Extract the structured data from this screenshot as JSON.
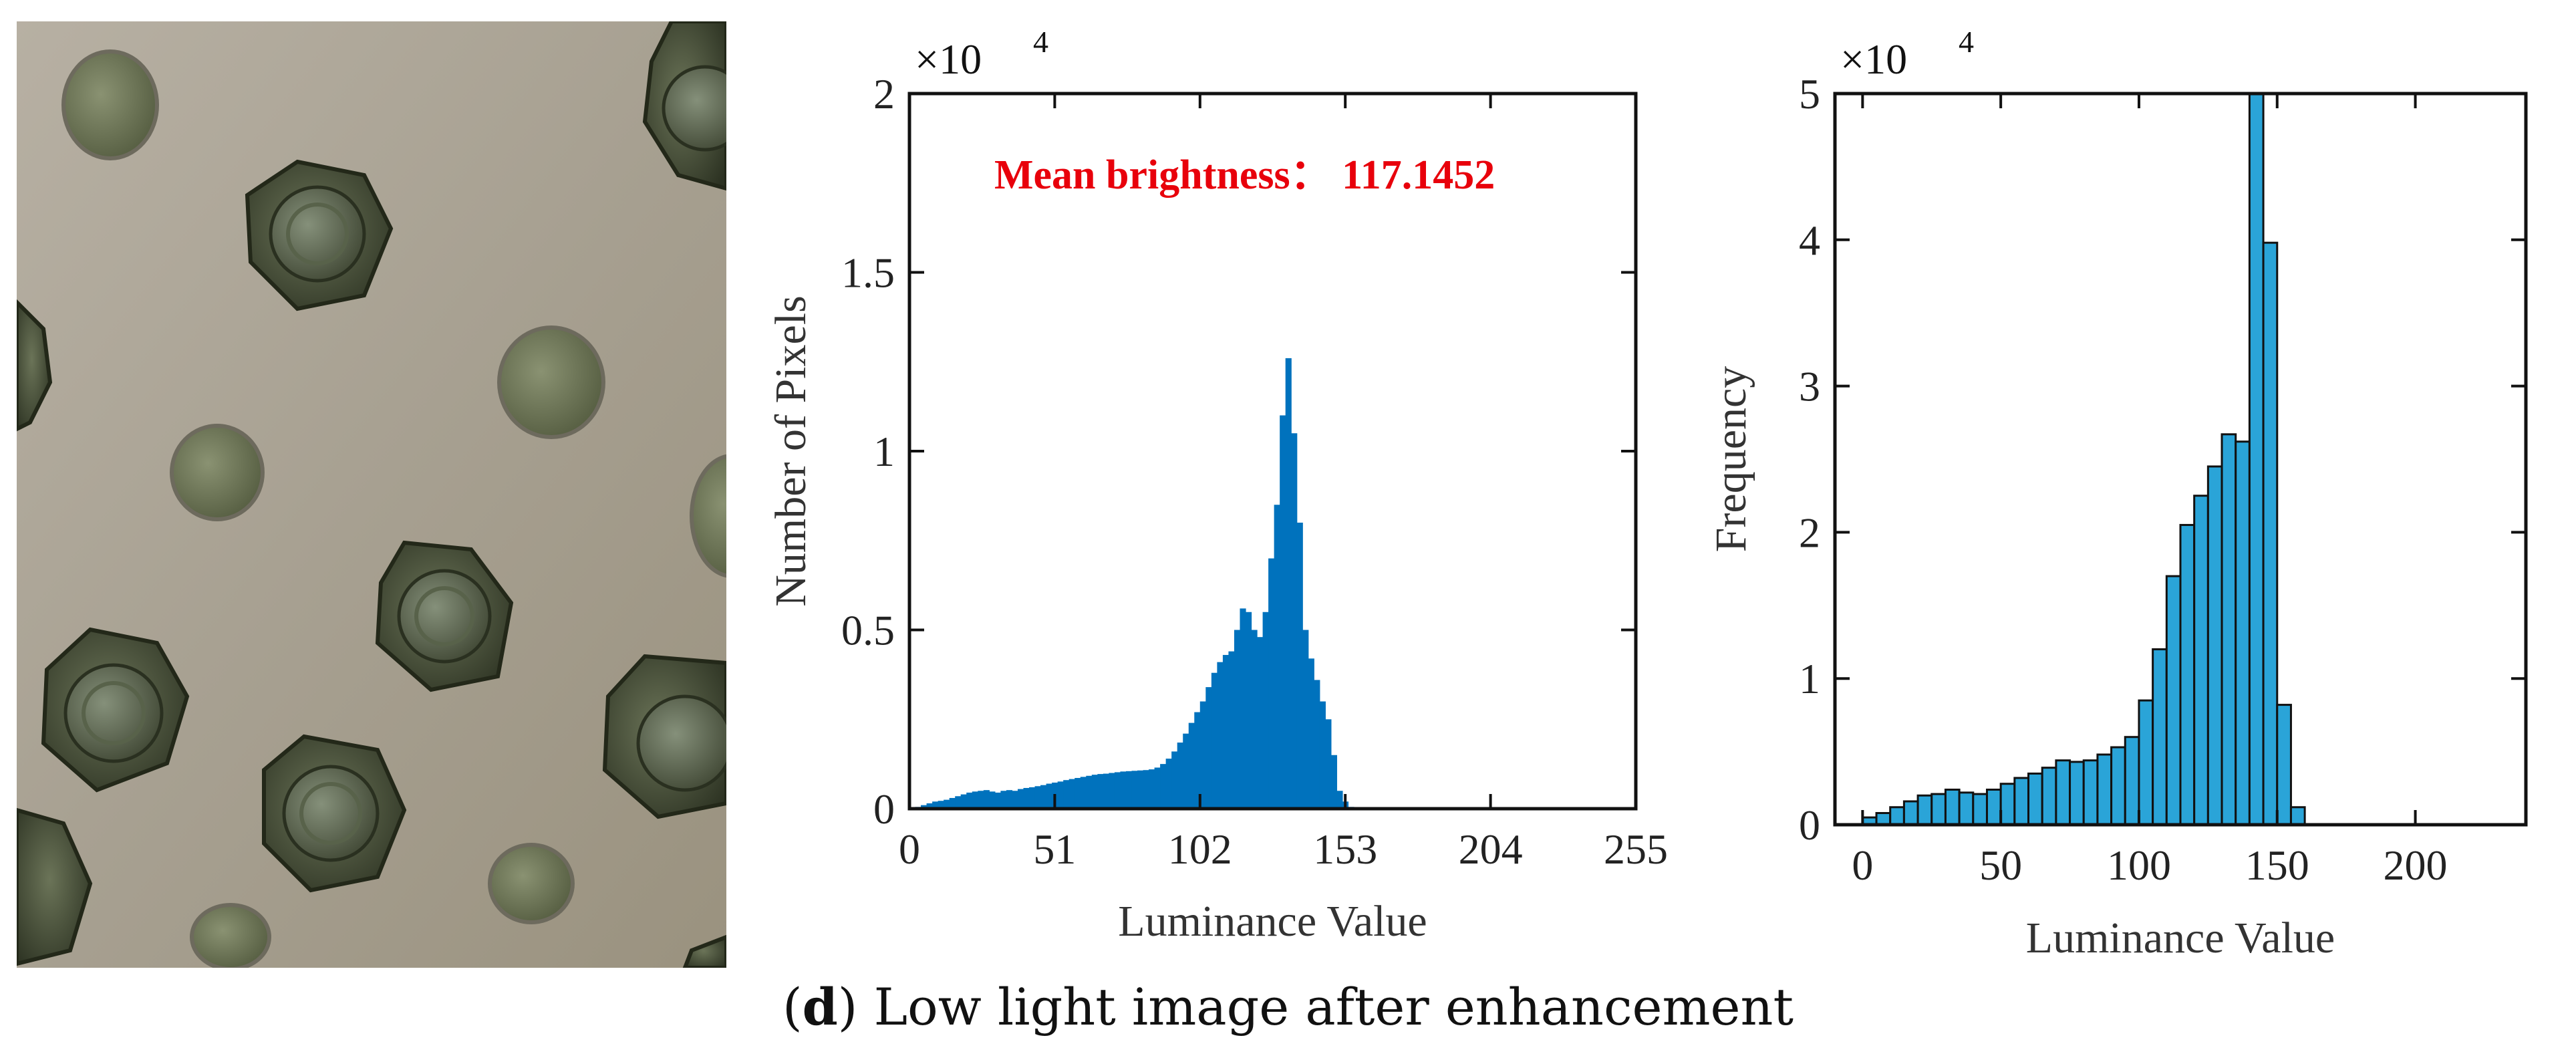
{
  "caption": {
    "label": "d",
    "text": "Low light image after enhancement"
  },
  "photo": {
    "description_name": "hex-bolt-plate-photo"
  },
  "colors": {
    "hist_fill": "#0072bd",
    "bar_fill": "#2aa4d8",
    "annotation": "#e8000b",
    "axis": "#111111"
  },
  "chart_data": [
    {
      "type": "area",
      "title": "",
      "xlabel": "Luminance Value",
      "ylabel": "Number of Pixels",
      "exponent_label": "×10",
      "exponent_power": "4",
      "annotation": "Mean brightness： 117.1452",
      "xlim": [
        0,
        255
      ],
      "ylim": [
        0,
        2
      ],
      "xticks": [
        0,
        51,
        102,
        153,
        204,
        255
      ],
      "yticks": [
        0,
        0.5,
        1,
        1.5,
        2
      ],
      "ytick_labels": [
        "0",
        "0.5",
        "1",
        "1.5",
        "2"
      ],
      "grid": false,
      "x": [
        0,
        2,
        4,
        6,
        8,
        10,
        12,
        14,
        16,
        18,
        20,
        22,
        24,
        26,
        28,
        30,
        32,
        34,
        36,
        38,
        40,
        42,
        44,
        46,
        48,
        50,
        52,
        54,
        56,
        58,
        60,
        62,
        64,
        66,
        68,
        70,
        72,
        74,
        76,
        78,
        80,
        82,
        84,
        86,
        88,
        90,
        92,
        94,
        96,
        98,
        100,
        102,
        104,
        106,
        108,
        110,
        112,
        114,
        116,
        118,
        120,
        122,
        124,
        126,
        128,
        130,
        132,
        134,
        136,
        138,
        140,
        142,
        144,
        146,
        148,
        150,
        152,
        154,
        156,
        158,
        160
      ],
      "values": [
        0,
        0.005,
        0.01,
        0.015,
        0.02,
        0.022,
        0.025,
        0.03,
        0.035,
        0.04,
        0.045,
        0.048,
        0.05,
        0.052,
        0.048,
        0.045,
        0.05,
        0.052,
        0.05,
        0.055,
        0.058,
        0.06,
        0.063,
        0.066,
        0.07,
        0.073,
        0.076,
        0.08,
        0.083,
        0.086,
        0.089,
        0.092,
        0.095,
        0.097,
        0.098,
        0.1,
        0.102,
        0.104,
        0.105,
        0.106,
        0.107,
        0.108,
        0.11,
        0.115,
        0.125,
        0.14,
        0.16,
        0.185,
        0.21,
        0.24,
        0.27,
        0.3,
        0.34,
        0.38,
        0.41,
        0.43,
        0.44,
        0.5,
        0.56,
        0.55,
        0.5,
        0.48,
        0.55,
        0.7,
        0.85,
        1.1,
        1.26,
        1.05,
        0.8,
        0.5,
        0.42,
        0.36,
        0.3,
        0.25,
        0.15,
        0.05,
        0.02,
        0.005,
        0,
        0,
        0
      ]
    },
    {
      "type": "bar",
      "title": "",
      "xlabel": "Luminance Value",
      "ylabel": "Frequency",
      "exponent_label": "×10",
      "exponent_power": "4",
      "xlim": [
        -10,
        240
      ],
      "ylim": [
        0,
        5
      ],
      "xticks": [
        0,
        50,
        100,
        150,
        200
      ],
      "yticks": [
        0,
        1,
        2,
        3,
        4,
        5
      ],
      "bin_width": 5,
      "bin_starts": [
        0,
        5,
        10,
        15,
        20,
        25,
        30,
        35,
        40,
        45,
        50,
        55,
        60,
        65,
        70,
        75,
        80,
        85,
        90,
        95,
        100,
        105,
        110,
        115,
        120,
        125,
        130,
        135,
        140,
        145,
        150,
        155
      ],
      "values": [
        0.05,
        0.08,
        0.12,
        0.16,
        0.2,
        0.21,
        0.24,
        0.22,
        0.21,
        0.24,
        0.28,
        0.32,
        0.35,
        0.39,
        0.44,
        0.43,
        0.44,
        0.48,
        0.53,
        0.6,
        0.85,
        1.2,
        1.7,
        2.05,
        2.25,
        2.45,
        2.67,
        2.62,
        5.0,
        3.98,
        0.82,
        0.12
      ],
      "grid": false
    }
  ]
}
